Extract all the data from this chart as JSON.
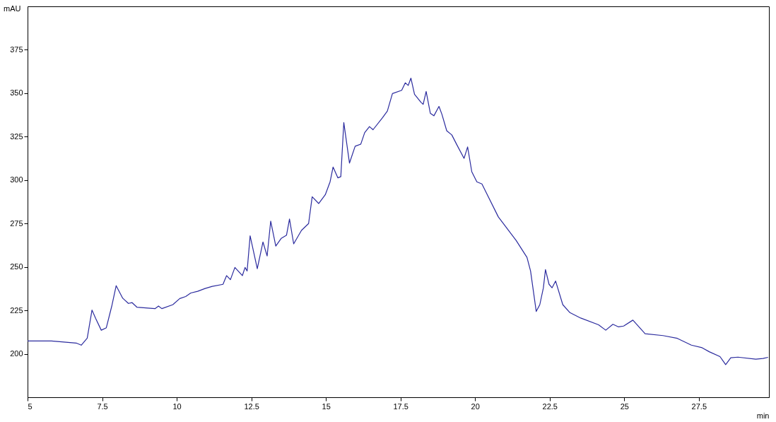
{
  "chart_data": {
    "type": "line",
    "xlabel": "min",
    "ylabel": "mAU",
    "xlim": [
      5,
      29.85
    ],
    "ylim": [
      175,
      400
    ],
    "xticks": [
      5,
      7.5,
      10,
      12.5,
      15,
      17.5,
      20,
      22.5,
      25,
      27.5
    ],
    "yticks": [
      200,
      225,
      250,
      275,
      300,
      325,
      350,
      375
    ],
    "grid": false,
    "x": [
      5,
      5.8,
      6.63,
      6.8,
      7.0,
      7.16,
      7.28,
      7.47,
      7.64,
      7.83,
      7.97,
      8.19,
      8.38,
      8.5,
      8.67,
      9.27,
      9.39,
      9.5,
      9.87,
      10.1,
      10.3,
      10.47,
      10.7,
      10.95,
      11.19,
      11.55,
      11.67,
      11.8,
      11.95,
      12.2,
      12.29,
      12.36,
      12.46,
      12.7,
      12.89,
      13.03,
      13.15,
      13.32,
      13.5,
      13.68,
      13.78,
      13.92,
      14.18,
      14.42,
      14.54,
      14.76,
      14.98,
      15.14,
      15.24,
      15.4,
      15.5,
      15.6,
      15.79,
      15.98,
      16.17,
      16.3,
      16.46,
      16.58,
      16.9,
      17.06,
      17.23,
      17.54,
      17.66,
      17.76,
      17.85,
      17.97,
      18.19,
      18.26,
      18.36,
      18.5,
      18.62,
      18.79,
      18.89,
      19.05,
      19.22,
      19.39,
      19.63,
      19.75,
      19.89,
      20.06,
      20.23,
      20.78,
      21.38,
      21.74,
      21.86,
      22.05,
      22.17,
      22.29,
      22.36,
      22.48,
      22.58,
      22.7,
      22.94,
      23.18,
      23.54,
      24.14,
      24.38,
      24.62,
      24.81,
      24.98,
      25.29,
      25.7,
      26.3,
      26.78,
      27.25,
      27.61,
      27.85,
      28.21,
      28.4,
      28.57,
      28.81,
      29.41,
      29.65,
      29.82
    ],
    "series": [
      {
        "color": "#2b2b9e",
        "values": [
          207.4,
          207.4,
          206.2,
          205,
          209,
          225.2,
          220.5,
          213.6,
          215,
          228,
          239.2,
          232,
          229,
          229.5,
          226.8,
          226,
          227.5,
          226,
          228.3,
          231.8,
          233,
          235,
          236,
          237.6,
          238.8,
          240,
          245,
          242.7,
          249.7,
          245,
          249.7,
          247.7,
          267.9,
          249,
          264.4,
          256.3,
          276.4,
          262,
          266.4,
          268.3,
          277.6,
          263.3,
          271,
          275,
          290.4,
          286.5,
          291.6,
          299,
          307.5,
          301.3,
          302,
          333.1,
          309.8,
          319.5,
          320.7,
          327.3,
          330.8,
          329,
          336,
          339.7,
          349.8,
          351.7,
          356,
          354.5,
          358.7,
          349.4,
          344.7,
          343.6,
          351,
          338.5,
          337,
          342.4,
          337.8,
          328.4,
          326,
          320.3,
          312.5,
          319.1,
          304.8,
          299,
          297.8,
          278.8,
          265.2,
          255.5,
          247.7,
          224.4,
          228.3,
          238,
          248.5,
          240,
          238,
          241.9,
          228.3,
          223.7,
          220.6,
          216.7,
          213.6,
          217,
          215.5,
          216,
          219.4,
          211.6,
          210.5,
          208.9,
          205,
          203.5,
          201.2,
          198.4,
          193.8,
          197.7,
          198.1,
          196.9,
          197.3,
          198
        ]
      }
    ]
  }
}
